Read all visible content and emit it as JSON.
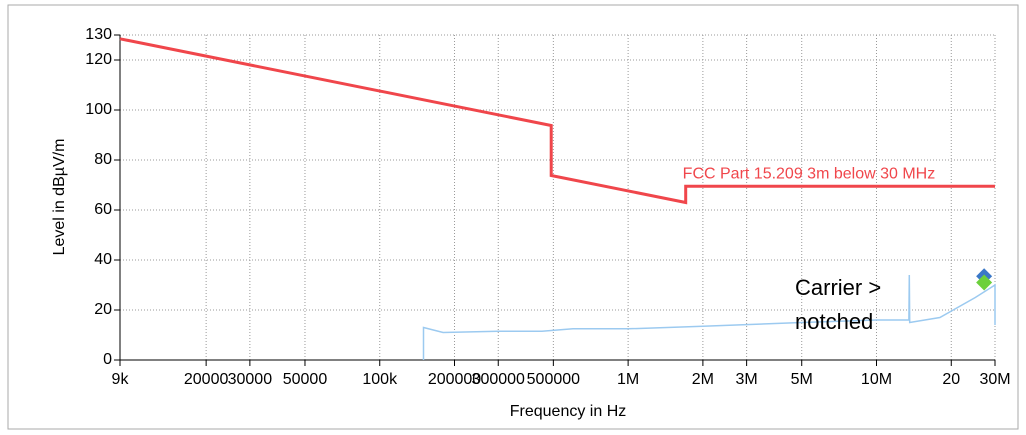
{
  "chart_data": {
    "type": "line",
    "x_label": "Frequency in Hz",
    "y_label": "Level in dBµV/m",
    "x_scale": "log",
    "grid": true,
    "xlim": [
      9000,
      30000000
    ],
    "ylim": [
      0,
      130
    ],
    "xticks": [
      {
        "value": 9000,
        "label": "9k"
      },
      20000,
      30000,
      50000,
      {
        "value": 100000,
        "label": "100k"
      },
      200000,
      300000,
      500000,
      {
        "value": 1000000,
        "label": "1M"
      },
      {
        "value": 2000000,
        "label": "2M"
      },
      {
        "value": 3000000,
        "label": "3M"
      },
      {
        "value": 5000000,
        "label": "5M"
      },
      {
        "value": 10000000,
        "label": "10M"
      },
      {
        "value": 20000000,
        "label": "20"
      },
      {
        "value": 30000000,
        "label": "30M"
      }
    ],
    "yticks": [
      0,
      20,
      40,
      60,
      80,
      100,
      120,
      130
    ],
    "series": [
      {
        "name": "FCC Part 15.209 3m below 30 MHz",
        "color": "#f0464b",
        "style": "line",
        "x": [
          9000,
          490000,
          490000,
          1705000,
          1705000,
          30000000
        ],
        "y": [
          128.5,
          93.8,
          73.8,
          63,
          69.5,
          69.5
        ]
      },
      {
        "color": "#9ccaf0",
        "style": "line",
        "x": [
          150000,
          150000,
          180000,
          300000,
          450000,
          600000,
          1000000,
          2000000,
          5000000,
          10000000,
          13500000,
          13560000,
          13600000,
          18000000,
          25000000,
          30000000,
          30000000
        ],
        "y": [
          0,
          13,
          11,
          11.5,
          11.5,
          12.5,
          12.5,
          13.5,
          15,
          16,
          16,
          34,
          15,
          17,
          25,
          30,
          14
        ]
      },
      {
        "color": "#3a78c8",
        "style": "diamond",
        "x": [
          27120000
        ],
        "y": [
          33.5
        ]
      },
      {
        "color": "#6cd03c",
        "style": "diamond",
        "x": [
          27120000
        ],
        "y": [
          31
        ]
      }
    ],
    "annotations": [
      "Carrier >",
      "notched"
    ]
  }
}
